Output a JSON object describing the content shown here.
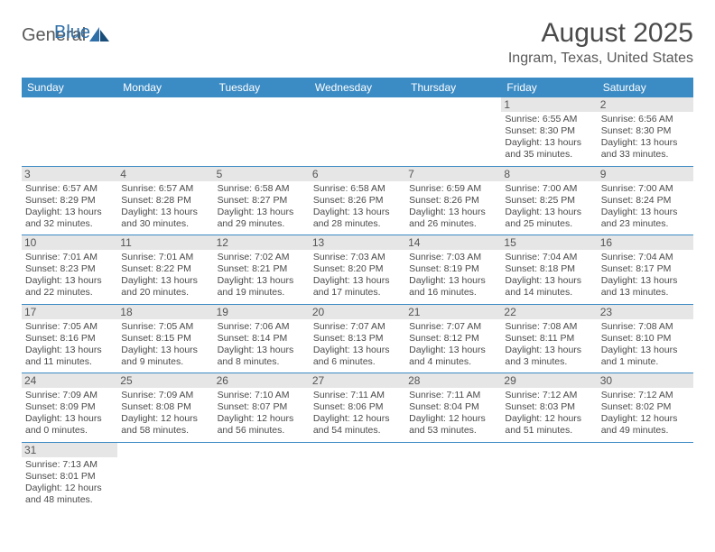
{
  "logo": {
    "general": "General",
    "blue": "Blue"
  },
  "title": "August 2025",
  "location": "Ingram, Texas, United States",
  "colors": {
    "header_bg": "#3b8bc4",
    "header_text": "#ffffff",
    "daynum_bg": "#e6e6e6",
    "body_text": "#4a4a4a",
    "rule": "#3b8bc4",
    "logo_blue": "#2f6fa8"
  },
  "weekdays": [
    "Sunday",
    "Monday",
    "Tuesday",
    "Wednesday",
    "Thursday",
    "Friday",
    "Saturday"
  ],
  "weeks": [
    [
      null,
      null,
      null,
      null,
      null,
      {
        "n": "1",
        "sr": "Sunrise: 6:55 AM",
        "ss": "Sunset: 8:30 PM",
        "dl": "Daylight: 13 hours and 35 minutes."
      },
      {
        "n": "2",
        "sr": "Sunrise: 6:56 AM",
        "ss": "Sunset: 8:30 PM",
        "dl": "Daylight: 13 hours and 33 minutes."
      }
    ],
    [
      {
        "n": "3",
        "sr": "Sunrise: 6:57 AM",
        "ss": "Sunset: 8:29 PM",
        "dl": "Daylight: 13 hours and 32 minutes."
      },
      {
        "n": "4",
        "sr": "Sunrise: 6:57 AM",
        "ss": "Sunset: 8:28 PM",
        "dl": "Daylight: 13 hours and 30 minutes."
      },
      {
        "n": "5",
        "sr": "Sunrise: 6:58 AM",
        "ss": "Sunset: 8:27 PM",
        "dl": "Daylight: 13 hours and 29 minutes."
      },
      {
        "n": "6",
        "sr": "Sunrise: 6:58 AM",
        "ss": "Sunset: 8:26 PM",
        "dl": "Daylight: 13 hours and 28 minutes."
      },
      {
        "n": "7",
        "sr": "Sunrise: 6:59 AM",
        "ss": "Sunset: 8:26 PM",
        "dl": "Daylight: 13 hours and 26 minutes."
      },
      {
        "n": "8",
        "sr": "Sunrise: 7:00 AM",
        "ss": "Sunset: 8:25 PM",
        "dl": "Daylight: 13 hours and 25 minutes."
      },
      {
        "n": "9",
        "sr": "Sunrise: 7:00 AM",
        "ss": "Sunset: 8:24 PM",
        "dl": "Daylight: 13 hours and 23 minutes."
      }
    ],
    [
      {
        "n": "10",
        "sr": "Sunrise: 7:01 AM",
        "ss": "Sunset: 8:23 PM",
        "dl": "Daylight: 13 hours and 22 minutes."
      },
      {
        "n": "11",
        "sr": "Sunrise: 7:01 AM",
        "ss": "Sunset: 8:22 PM",
        "dl": "Daylight: 13 hours and 20 minutes."
      },
      {
        "n": "12",
        "sr": "Sunrise: 7:02 AM",
        "ss": "Sunset: 8:21 PM",
        "dl": "Daylight: 13 hours and 19 minutes."
      },
      {
        "n": "13",
        "sr": "Sunrise: 7:03 AM",
        "ss": "Sunset: 8:20 PM",
        "dl": "Daylight: 13 hours and 17 minutes."
      },
      {
        "n": "14",
        "sr": "Sunrise: 7:03 AM",
        "ss": "Sunset: 8:19 PM",
        "dl": "Daylight: 13 hours and 16 minutes."
      },
      {
        "n": "15",
        "sr": "Sunrise: 7:04 AM",
        "ss": "Sunset: 8:18 PM",
        "dl": "Daylight: 13 hours and 14 minutes."
      },
      {
        "n": "16",
        "sr": "Sunrise: 7:04 AM",
        "ss": "Sunset: 8:17 PM",
        "dl": "Daylight: 13 hours and 13 minutes."
      }
    ],
    [
      {
        "n": "17",
        "sr": "Sunrise: 7:05 AM",
        "ss": "Sunset: 8:16 PM",
        "dl": "Daylight: 13 hours and 11 minutes."
      },
      {
        "n": "18",
        "sr": "Sunrise: 7:05 AM",
        "ss": "Sunset: 8:15 PM",
        "dl": "Daylight: 13 hours and 9 minutes."
      },
      {
        "n": "19",
        "sr": "Sunrise: 7:06 AM",
        "ss": "Sunset: 8:14 PM",
        "dl": "Daylight: 13 hours and 8 minutes."
      },
      {
        "n": "20",
        "sr": "Sunrise: 7:07 AM",
        "ss": "Sunset: 8:13 PM",
        "dl": "Daylight: 13 hours and 6 minutes."
      },
      {
        "n": "21",
        "sr": "Sunrise: 7:07 AM",
        "ss": "Sunset: 8:12 PM",
        "dl": "Daylight: 13 hours and 4 minutes."
      },
      {
        "n": "22",
        "sr": "Sunrise: 7:08 AM",
        "ss": "Sunset: 8:11 PM",
        "dl": "Daylight: 13 hours and 3 minutes."
      },
      {
        "n": "23",
        "sr": "Sunrise: 7:08 AM",
        "ss": "Sunset: 8:10 PM",
        "dl": "Daylight: 13 hours and 1 minute."
      }
    ],
    [
      {
        "n": "24",
        "sr": "Sunrise: 7:09 AM",
        "ss": "Sunset: 8:09 PM",
        "dl": "Daylight: 13 hours and 0 minutes."
      },
      {
        "n": "25",
        "sr": "Sunrise: 7:09 AM",
        "ss": "Sunset: 8:08 PM",
        "dl": "Daylight: 12 hours and 58 minutes."
      },
      {
        "n": "26",
        "sr": "Sunrise: 7:10 AM",
        "ss": "Sunset: 8:07 PM",
        "dl": "Daylight: 12 hours and 56 minutes."
      },
      {
        "n": "27",
        "sr": "Sunrise: 7:11 AM",
        "ss": "Sunset: 8:06 PM",
        "dl": "Daylight: 12 hours and 54 minutes."
      },
      {
        "n": "28",
        "sr": "Sunrise: 7:11 AM",
        "ss": "Sunset: 8:04 PM",
        "dl": "Daylight: 12 hours and 53 minutes."
      },
      {
        "n": "29",
        "sr": "Sunrise: 7:12 AM",
        "ss": "Sunset: 8:03 PM",
        "dl": "Daylight: 12 hours and 51 minutes."
      },
      {
        "n": "30",
        "sr": "Sunrise: 7:12 AM",
        "ss": "Sunset: 8:02 PM",
        "dl": "Daylight: 12 hours and 49 minutes."
      }
    ],
    [
      {
        "n": "31",
        "sr": "Sunrise: 7:13 AM",
        "ss": "Sunset: 8:01 PM",
        "dl": "Daylight: 12 hours and 48 minutes."
      },
      null,
      null,
      null,
      null,
      null,
      null
    ]
  ]
}
